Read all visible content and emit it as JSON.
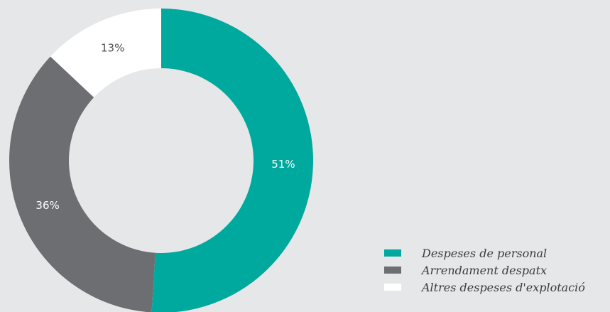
{
  "chart_data": {
    "type": "pie",
    "subtype": "donut",
    "title": "",
    "categories": [
      "Despeses de personal",
      "Arrendament despatx",
      "Altres despeses d'explotació"
    ],
    "values": [
      51,
      36,
      13
    ],
    "labels": [
      "51%",
      "36%",
      "13%"
    ],
    "colors": [
      "#00a99d",
      "#6d6e71",
      "#ffffff"
    ],
    "label_colors": [
      "#ffffff",
      "#ffffff",
      "#4d4d4f"
    ],
    "legend_position": "bottom-right"
  },
  "background_color": "#e6e7e8"
}
